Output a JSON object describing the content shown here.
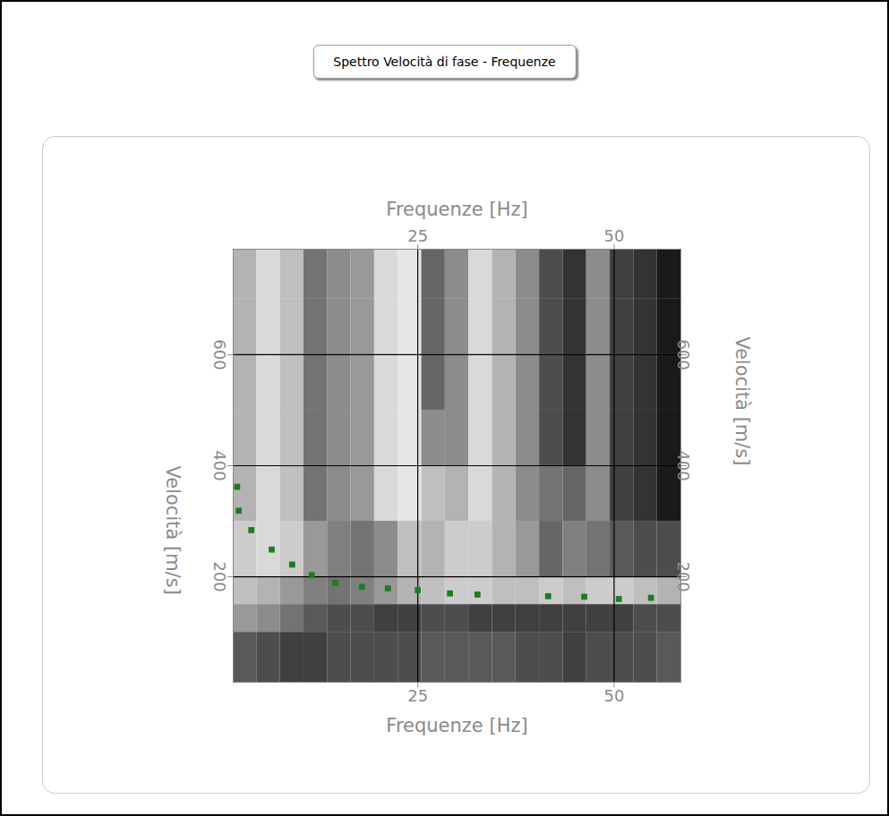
{
  "chart_data": {
    "type": "scatter",
    "title": "Spettro Velocità di fase - Frequenze",
    "x_label": "Frequenze [Hz]",
    "y_label": "Velocità [m/s]",
    "x": [
      2.0,
      2.2,
      3.8,
      6.4,
      9.0,
      11.5,
      14.5,
      17.9,
      21.2,
      25.0,
      29.1,
      32.6,
      41.6,
      46.2,
      50.6,
      54.7
    ],
    "values": [
      362,
      319,
      284,
      249,
      222,
      203,
      189,
      182,
      179,
      176,
      170,
      168,
      165,
      164,
      160,
      162
    ],
    "color": "#1e7b1e",
    "marker": "square",
    "xlim": [
      1.5,
      58.5
    ],
    "ylim": [
      10,
      790
    ],
    "xticks": [
      25,
      50
    ],
    "yticks": [
      200,
      400,
      600
    ],
    "grid": true,
    "cells": {
      "x_bins": [
        1.5,
        4.5,
        7.5,
        10.5,
        13.5,
        16.5,
        19.5,
        22.5,
        25.5,
        28.5,
        31.5,
        34.5,
        37.5,
        40.5,
        43.5,
        46.5,
        49.5,
        52.5,
        55.5,
        58.5
      ],
      "y_bins": [
        10,
        100,
        150,
        200,
        300,
        400,
        500,
        600,
        700,
        790
      ],
      "clim": [
        0,
        1
      ],
      "values": [
        [
          0.35,
          0.3,
          0.25,
          0.25,
          0.3,
          0.3,
          0.3,
          0.3,
          0.35,
          0.35,
          0.35,
          0.35,
          0.3,
          0.3,
          0.25,
          0.3,
          0.3,
          0.3,
          0.35
        ],
        [
          0.6,
          0.55,
          0.45,
          0.35,
          0.3,
          0.3,
          0.25,
          0.25,
          0.3,
          0.3,
          0.25,
          0.25,
          0.25,
          0.25,
          0.25,
          0.25,
          0.25,
          0.3,
          0.3
        ],
        [
          0.75,
          0.7,
          0.6,
          0.5,
          0.45,
          0.5,
          0.6,
          0.7,
          0.75,
          0.8,
          0.8,
          0.75,
          0.75,
          0.8,
          0.75,
          0.8,
          0.8,
          0.75,
          0.7
        ],
        [
          0.8,
          0.85,
          0.8,
          0.6,
          0.5,
          0.45,
          0.55,
          0.75,
          0.7,
          0.8,
          0.8,
          0.7,
          0.6,
          0.4,
          0.5,
          0.45,
          0.35,
          0.3,
          0.3
        ],
        [
          0.7,
          0.85,
          0.75,
          0.45,
          0.55,
          0.6,
          0.85,
          0.9,
          0.75,
          0.7,
          0.85,
          0.7,
          0.55,
          0.45,
          0.4,
          0.55,
          0.25,
          0.2,
          0.1
        ],
        [
          0.7,
          0.85,
          0.75,
          0.45,
          0.55,
          0.6,
          0.85,
          0.9,
          0.55,
          0.55,
          0.85,
          0.7,
          0.55,
          0.3,
          0.2,
          0.55,
          0.25,
          0.2,
          0.1
        ],
        [
          0.7,
          0.85,
          0.75,
          0.45,
          0.55,
          0.6,
          0.85,
          0.9,
          0.4,
          0.55,
          0.85,
          0.7,
          0.55,
          0.3,
          0.2,
          0.55,
          0.25,
          0.2,
          0.1
        ],
        [
          0.7,
          0.85,
          0.75,
          0.45,
          0.55,
          0.6,
          0.85,
          0.9,
          0.4,
          0.55,
          0.85,
          0.7,
          0.55,
          0.3,
          0.2,
          0.55,
          0.25,
          0.2,
          0.1
        ],
        [
          0.7,
          0.85,
          0.75,
          0.45,
          0.55,
          0.6,
          0.85,
          0.9,
          0.4,
          0.55,
          0.85,
          0.7,
          0.55,
          0.3,
          0.2,
          0.55,
          0.25,
          0.2,
          0.1
        ]
      ]
    }
  }
}
